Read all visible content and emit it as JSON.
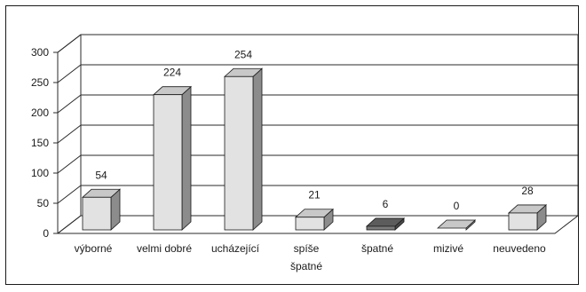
{
  "chart_data": {
    "type": "bar",
    "title": "",
    "xlabel": "",
    "ylabel": "",
    "categories": [
      "výborné",
      "velmi dobré",
      "ucházející",
      "spíše\nšpatné",
      "špatné",
      "mizivé",
      "neuvedeno"
    ],
    "values": [
      54,
      224,
      254,
      21,
      6,
      0,
      28
    ],
    "data_labels": [
      "54",
      "224",
      "254",
      "21",
      "6",
      "0",
      "28"
    ],
    "ylim": [
      0,
      300
    ],
    "yticks": [
      0,
      50,
      100,
      150,
      200,
      250,
      300
    ],
    "ytick_labels": [
      "0",
      "50",
      "100",
      "150",
      "200",
      "250",
      "300"
    ],
    "grid": true,
    "legend": "none",
    "colors": {
      "bar_front": "#e2e2e2",
      "bar_top": "#c8c8c8",
      "bar_side": "#8c8c8c",
      "dark_bar_front": "#7a7a7a",
      "dark_bar_top": "#5c5c5c",
      "dark_bar_side": "#4a4a4a",
      "grid": "#2a2a2a",
      "border": "#1a1a1a"
    }
  }
}
